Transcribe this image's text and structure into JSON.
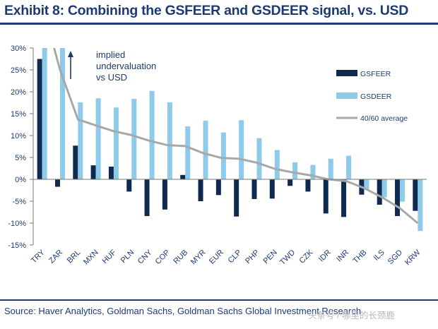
{
  "title": "Exhibit 8: Combining the GSFEER and GSDEER signal, vs. USD",
  "source": "Source: Haver Analytics, Goldman Sachs, Goldman Sachs Global Investment Research",
  "watermark": "头条号 / 哪里的长颈鹿",
  "colors": {
    "gsfeer": "#0e2a4f",
    "gsdeer": "#8ecbea",
    "average": "#a8a8a8",
    "title": "#1d3b73"
  },
  "chart_data": {
    "type": "bar",
    "categories": [
      "TRY",
      "ZAR",
      "BRL",
      "MXN",
      "HUF",
      "PLN",
      "CNY",
      "COP",
      "RUB",
      "MYR",
      "EUR",
      "CLP",
      "PHP",
      "PEN",
      "TWD",
      "CZK",
      "IDR",
      "INR",
      "THB",
      "ILS",
      "SGD",
      "KRW"
    ],
    "series": [
      {
        "name": "GSFEER",
        "type": "bar",
        "values": [
          27.5,
          -1.7,
          7.7,
          3.2,
          2.9,
          -2.8,
          -8.4,
          -6.9,
          1.0,
          -5.0,
          -3.6,
          -8.5,
          -4.5,
          -4.4,
          -1.5,
          -2.8,
          -7.8,
          -8.6,
          -3.5,
          -5.8,
          -8.4,
          -7.2
        ]
      },
      {
        "name": "GSDEER",
        "type": "bar",
        "values": [
          30.0,
          30.0,
          17.6,
          18.5,
          16.4,
          18.4,
          20.2,
          17.6,
          12.1,
          13.4,
          10.7,
          13.5,
          9.4,
          6.7,
          3.9,
          3.3,
          4.7,
          5.4,
          -2.4,
          -4.1,
          -5.1,
          -11.8
        ]
      },
      {
        "name": "40/60 average",
        "type": "line",
        "values": [
          40.0,
          25.0,
          13.7,
          12.3,
          11.0,
          10.1,
          8.8,
          7.8,
          7.6,
          6.0,
          4.9,
          4.7,
          3.8,
          2.4,
          1.6,
          0.9,
          0.0,
          -0.4,
          -2.0,
          -4.1,
          -6.6,
          -10.0
        ]
      }
    ],
    "ylim": [
      -15,
      30
    ],
    "yticks": [
      "30%",
      "25%",
      "20%",
      "15%",
      "10%",
      "5%",
      "0%",
      "-5%",
      "-10%",
      "-15%"
    ],
    "xlabel": "",
    "ylabel": "",
    "legend": [
      "GSFEER",
      "GSDEER",
      "40/60 average"
    ],
    "legend_position": "right",
    "annotation": {
      "lines": [
        "implied",
        "undervaluation",
        "vs USD"
      ],
      "arrow": "up"
    },
    "grid": false
  }
}
